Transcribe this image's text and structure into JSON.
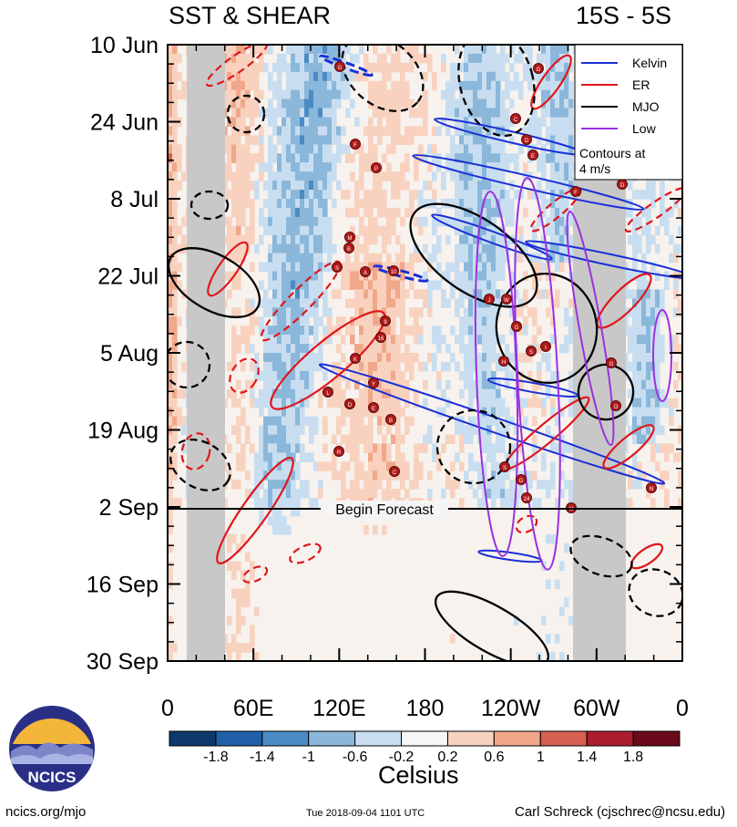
{
  "chart_data": {
    "type": "heatmap",
    "title_left": "SST & SHEAR",
    "title_right": "15S - 5S",
    "x_tick_labels": [
      "0",
      "60E",
      "120E",
      "180",
      "120W",
      "60W",
      "0"
    ],
    "x_range": [
      0,
      360
    ],
    "y_tick_labels": [
      "10 Jun",
      "24 Jun",
      "8 Jul",
      "22 Jul",
      "5 Aug",
      "19 Aug",
      "2 Sep",
      "16 Sep",
      "30 Sep"
    ],
    "y_range": [
      "10 Jun",
      "30 Sep"
    ],
    "forecast_label": "Begin Forecast",
    "forecast_date": "2 Sep",
    "legend": {
      "entries": [
        {
          "name": "Kelvin",
          "color": "#1a2fd6"
        },
        {
          "name": "ER",
          "color": "#e0161b"
        },
        {
          "name": "MJO",
          "color": "#000000"
        },
        {
          "name": "Low",
          "color": "#9b30e0"
        }
      ],
      "note_line1": "Contours at",
      "note_line2": "4 m/s"
    },
    "colorbar": {
      "tick_labels": [
        "-1.8",
        "-1.4",
        "-1",
        "-0.6",
        "-0.2",
        "0.2",
        "0.6",
        "1",
        "1.4",
        "1.8"
      ],
      "colors": [
        "#0d3a6b",
        "#2060a8",
        "#4a8bc4",
        "#8ab7da",
        "#c8def0",
        "#f6f6f6",
        "#f8d2bf",
        "#f1a78a",
        "#d76050",
        "#ad1d2f",
        "#6a0a1b"
      ],
      "label": "Celsius"
    },
    "storm_labels": [
      "G",
      "C",
      "D",
      "E",
      "F",
      "P",
      "M",
      "B",
      "S",
      "A",
      "10",
      "J",
      "W",
      "9",
      "G",
      "16",
      "S",
      "H",
      "I",
      "K",
      "Y",
      "L",
      "D",
      "E",
      "B",
      "R",
      "S",
      "G",
      "24",
      "M",
      "N",
      "O",
      "G",
      "F"
    ]
  },
  "logo": {
    "text": "NCICS"
  },
  "footer": {
    "left": "ncics.org/mjo",
    "middle": "Tue 2018-09-04 1101 UTC",
    "right": "Carl Schreck (cjschrec@ncsu.edu)"
  }
}
